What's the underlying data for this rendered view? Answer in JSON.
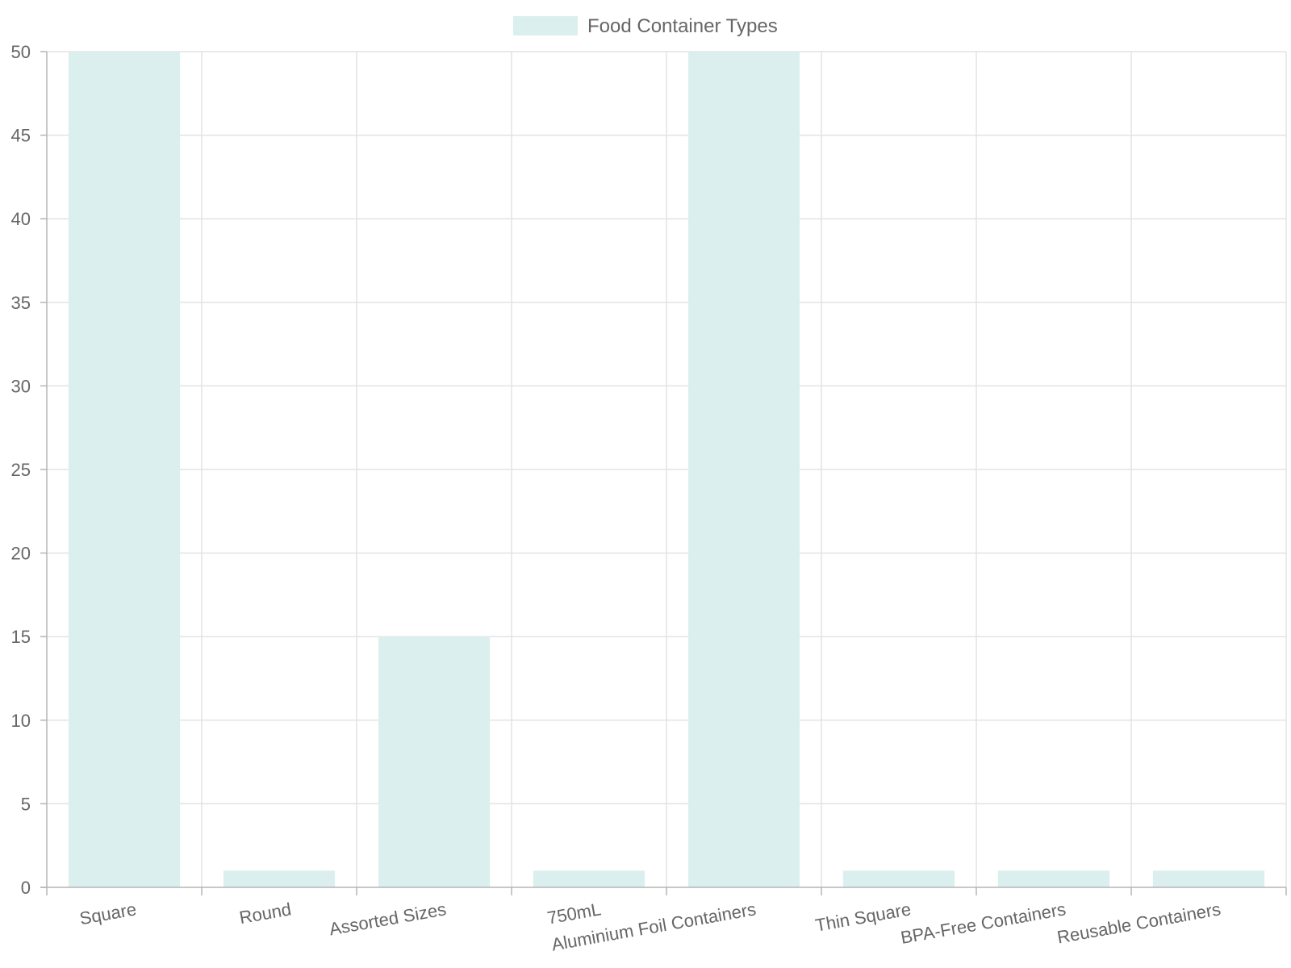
{
  "chart_data": {
    "type": "bar",
    "categories": [
      "Square",
      "Round",
      "Assorted Sizes",
      "750mL",
      "Aluminium Foil Containers",
      "Thin Square",
      "BPA-Free Containers",
      "Reusable Containers"
    ],
    "series": [
      {
        "name": "Food Container Types",
        "values": [
          50,
          1,
          15,
          1,
          50,
          1,
          1,
          1
        ],
        "color": "#dbf0ee"
      }
    ],
    "ylim": [
      0,
      50
    ],
    "y_ticks": [
      0,
      5,
      10,
      15,
      20,
      25,
      30,
      35,
      40,
      45,
      50
    ],
    "grid": true,
    "legend_position": "top-center",
    "xlabel": "",
    "ylabel": ""
  },
  "colors": {
    "bar_fill": "#dbf0ee",
    "grid": "#e3e3e3",
    "axis": "#b5b5b5",
    "text": "#666666"
  }
}
